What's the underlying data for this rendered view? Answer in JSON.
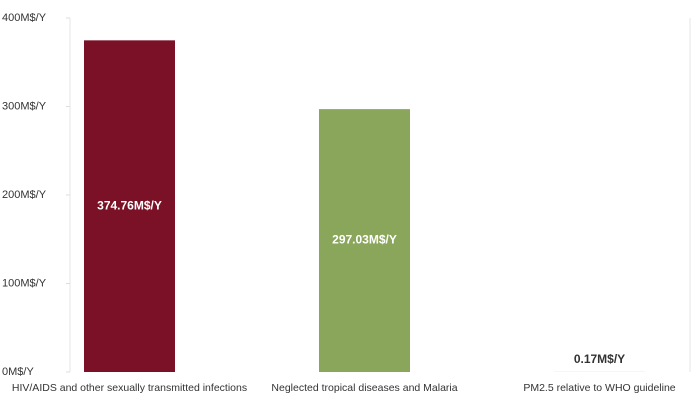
{
  "chart_data": {
    "type": "bar",
    "categories": [
      "HIV/AIDS and other sexually transmitted infections",
      "Neglected tropical diseases and Malaria",
      "PM2.5 relative to WHO guideline"
    ],
    "values": [
      374.76,
      297.03,
      0.17
    ],
    "value_labels": [
      "374.76M$/Y",
      "297.03M$/Y",
      "0.17M$/Y"
    ],
    "colors": [
      "#7b1126",
      "#8aa65a",
      "#d9c48a"
    ],
    "ylim": [
      0,
      400
    ],
    "yticks": [
      {
        "value": 0,
        "label": "0M$/Y"
      },
      {
        "value": 100,
        "label": "100M$/Y"
      },
      {
        "value": 200,
        "label": "200M$/Y"
      },
      {
        "value": 300,
        "label": "300M$/Y"
      },
      {
        "value": 400,
        "label": "400M$/Y"
      }
    ]
  }
}
